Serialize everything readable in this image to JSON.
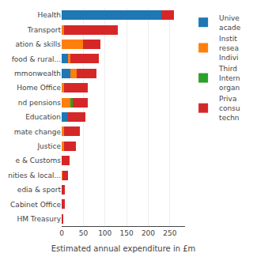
{
  "chart_data": {
    "type": "bar",
    "orientation": "horizontal",
    "stacked": true,
    "xlabel": "Estimated annual expenditure in £m",
    "categories": [
      "Health",
      "Transport",
      "ation & skills",
      "food & rural...",
      "mmonwealth",
      "Home Office",
      "nd pensions",
      "Education",
      "mate change",
      "Justice",
      "e & Customs",
      "nities & local...",
      "edia & sport",
      "Cabinet Office",
      "HM Treasury"
    ],
    "series": [
      {
        "name": "Unive\nacade",
        "values": [
          230,
          0,
          0,
          15,
          20,
          0,
          0,
          15,
          0,
          0,
          0,
          0,
          0,
          0,
          0
        ]
      },
      {
        "name": "Instit\nresea\nIndivi",
        "values": [
          0,
          5,
          50,
          5,
          15,
          5,
          20,
          0,
          5,
          5,
          0,
          2,
          0,
          0,
          0
        ]
      },
      {
        "name": "Third\nIntern\norgan",
        "values": [
          0,
          0,
          0,
          0,
          0,
          0,
          5,
          0,
          0,
          0,
          0,
          0,
          0,
          0,
          0
        ]
      },
      {
        "name": "Priva\nconsu\ntechn",
        "values": [
          30,
          125,
          40,
          65,
          45,
          55,
          35,
          40,
          37,
          27,
          18,
          12,
          8,
          8,
          3
        ]
      }
    ],
    "xlim": [
      0,
      285
    ],
    "xticks": [
      0,
      50,
      100,
      150,
      200,
      250
    ],
    "grid": true,
    "legend": "right"
  }
}
